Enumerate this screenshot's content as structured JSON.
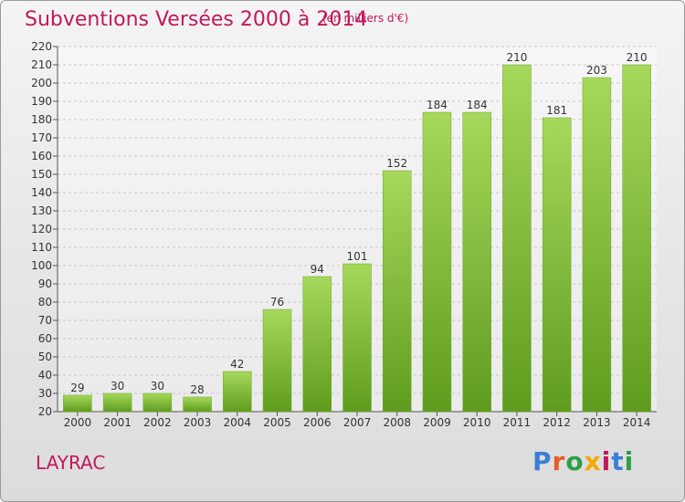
{
  "header": {
    "title": "Subventions Versées 2000 à 2014",
    "unit_note": "(en milliers d'€)"
  },
  "footer": {
    "city": "LAYRAC",
    "logo_text": "Proxiti",
    "logo_colors": [
      "#3a7fd5",
      "#e65b2a",
      "#2f9e44",
      "#f2a900",
      "#c2185b",
      "#3a7fd5",
      "#2f9e44"
    ]
  },
  "colors": {
    "accent": "#c2185b",
    "bar_light": "#a6d85b",
    "bar_dark": "#5f9c1e"
  },
  "chart_data": {
    "type": "bar",
    "title": "Subventions Versées 2000 à 2014",
    "subtitle": "(en milliers d'€)",
    "categories": [
      "2000",
      "2001",
      "2002",
      "2003",
      "2004",
      "2005",
      "2006",
      "2007",
      "2008",
      "2009",
      "2010",
      "2011",
      "2012",
      "2013",
      "2014"
    ],
    "values": [
      29,
      30,
      30,
      28,
      42,
      76,
      94,
      101,
      152,
      184,
      184,
      210,
      181,
      203,
      210
    ],
    "ylim": [
      20,
      220
    ],
    "yticks": [
      20,
      30,
      40,
      50,
      60,
      70,
      80,
      90,
      100,
      110,
      120,
      130,
      140,
      150,
      160,
      170,
      180,
      190,
      200,
      210,
      220
    ],
    "grid": true,
    "data_labels": true,
    "xlabel": "",
    "ylabel": ""
  }
}
